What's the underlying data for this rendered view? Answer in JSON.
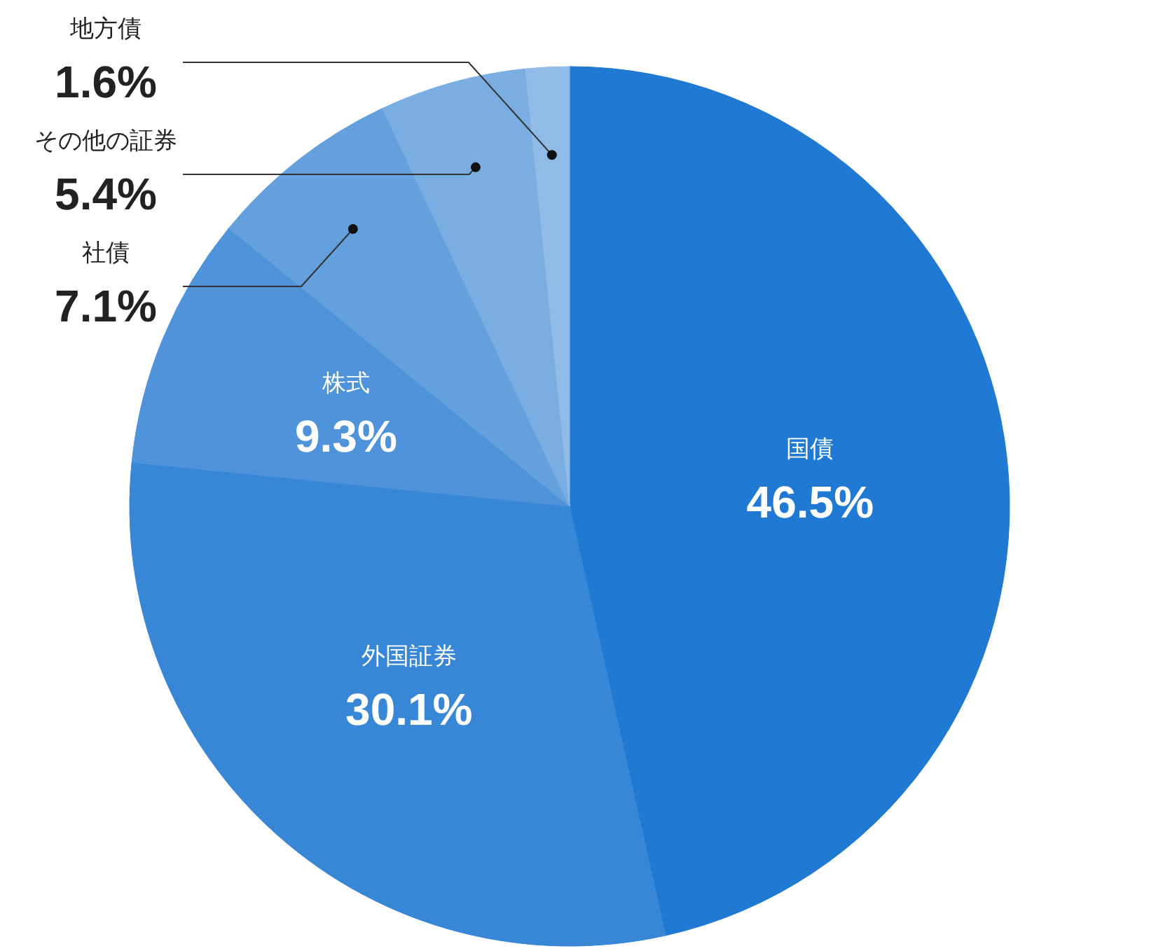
{
  "chart_data": {
    "type": "pie",
    "categories": [
      "国債",
      "外国証券",
      "株式",
      "社債",
      "その他の証券",
      "地方債"
    ],
    "values": [
      46.5,
      30.1,
      9.3,
      7.1,
      5.4,
      1.6
    ],
    "colors": [
      "#2079d2",
      "#3886d6",
      "#4f93da",
      "#64a0de",
      "#7aade2",
      "#90bbe6"
    ],
    "value_labels": [
      "46.5%",
      "30.1%",
      "9.3%",
      "7.1%",
      "5.4%",
      "1.6%"
    ]
  }
}
